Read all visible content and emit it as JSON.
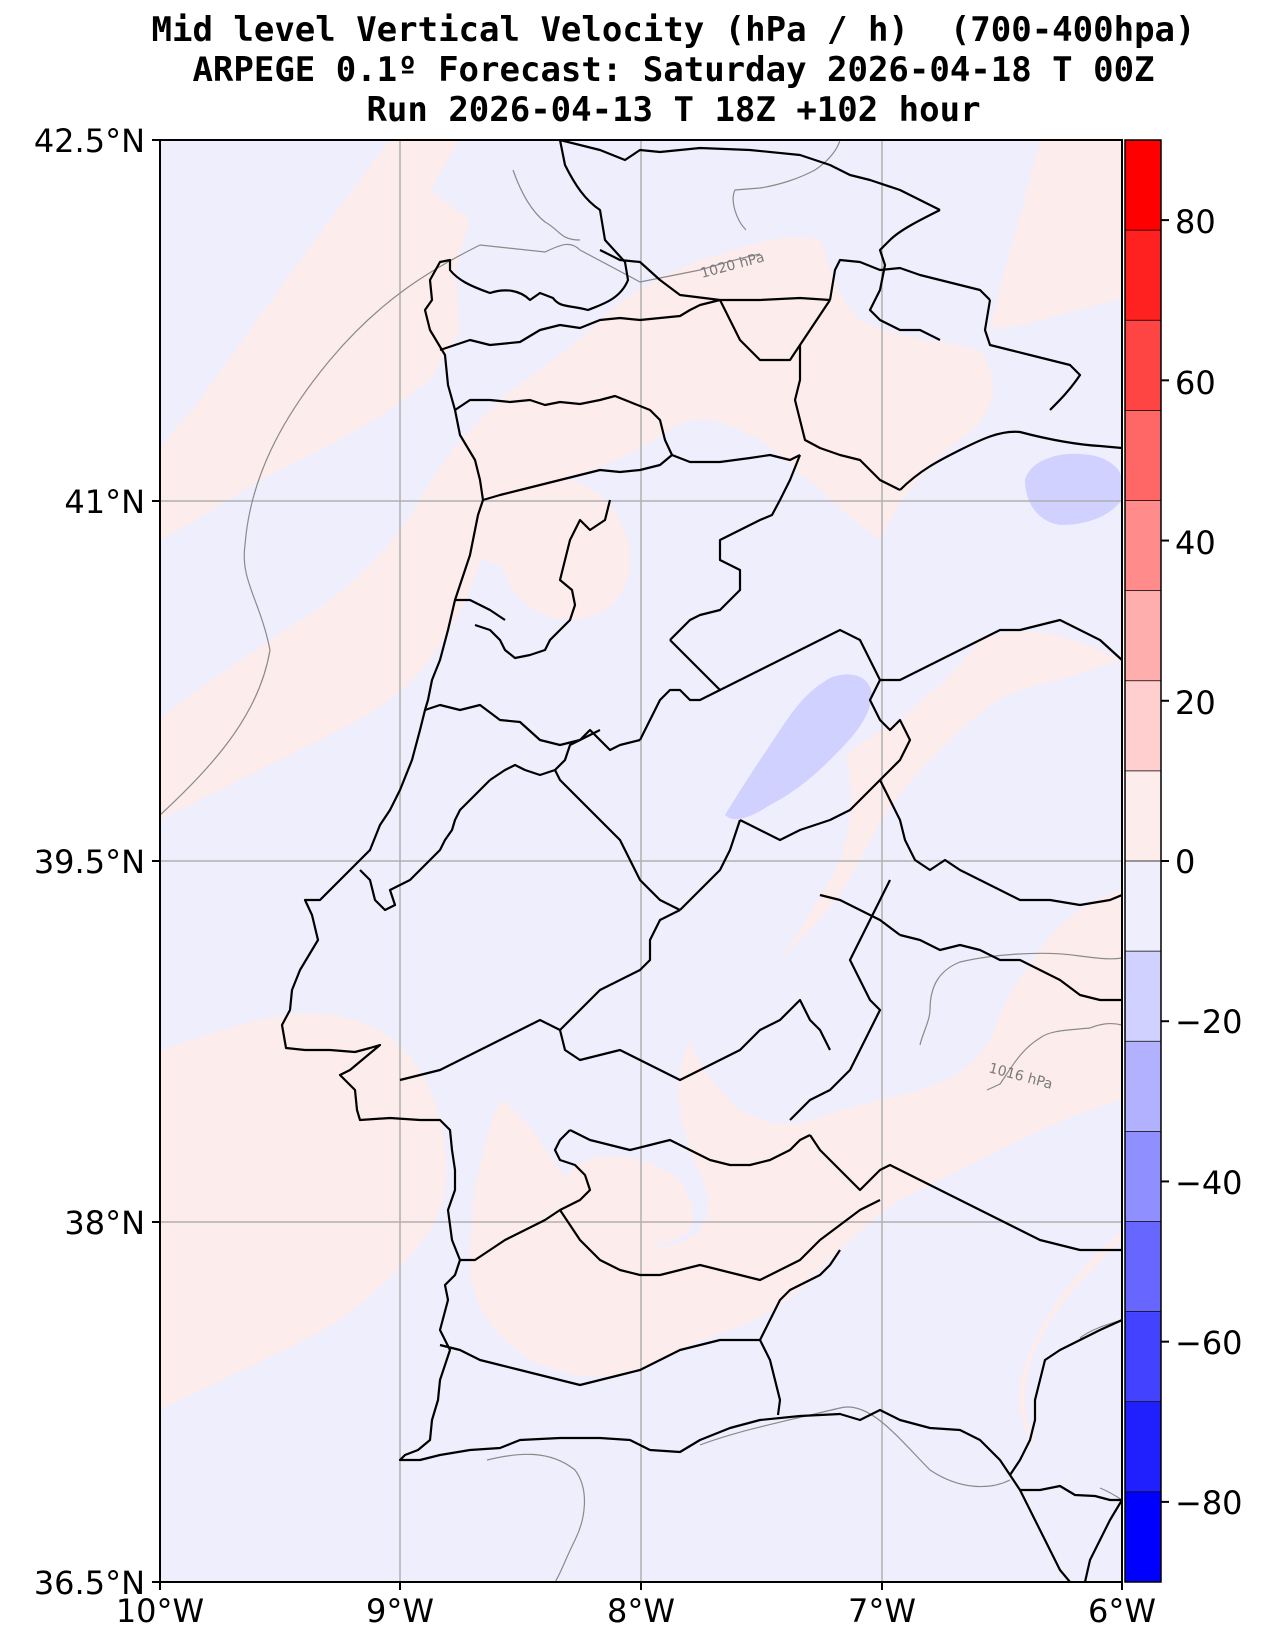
{
  "title": {
    "line1": "Mid level Vertical Velocity (hPa / h)  (700-400hpa)",
    "line2": "ARPEGE 0.1º Forecast: Saturday 2026-04-18 T 00Z",
    "line3": "Run 2026-04-13 T 18Z +102 hour"
  },
  "axes": {
    "lat_ticks": [
      "42.5°N",
      "41°N",
      "39.5°N",
      "38°N",
      "36.5°N"
    ],
    "lon_ticks": [
      "10°W",
      "9°W",
      "8°W",
      "7°W",
      "6°W"
    ]
  },
  "isobars": {
    "label1": "1020 hPa",
    "label2": "1016 hPa"
  },
  "colorbar": {
    "labels": [
      "80",
      "60",
      "40",
      "20",
      "0",
      "−20",
      "−40",
      "−60",
      "−80"
    ],
    "colors": [
      "#0000ff",
      "#2020ff",
      "#4343ff",
      "#6767ff",
      "#8f8fff",
      "#b1b1ff",
      "#d1d1ff",
      "#eeeefd",
      "#fdecec",
      "#ffcfcf",
      "#ffaeae",
      "#ff8b8b",
      "#ff6767",
      "#ff4444",
      "#ff2020",
      "#ff0000"
    ]
  },
  "colors": {
    "positive_fill": "#fdecec",
    "negative_fill": "#eeeefd",
    "stronger_negative_fill": "#d1d1ff",
    "border": "#000000",
    "grid": "#b0b0b0",
    "isobar": "#8a8a8a"
  }
}
